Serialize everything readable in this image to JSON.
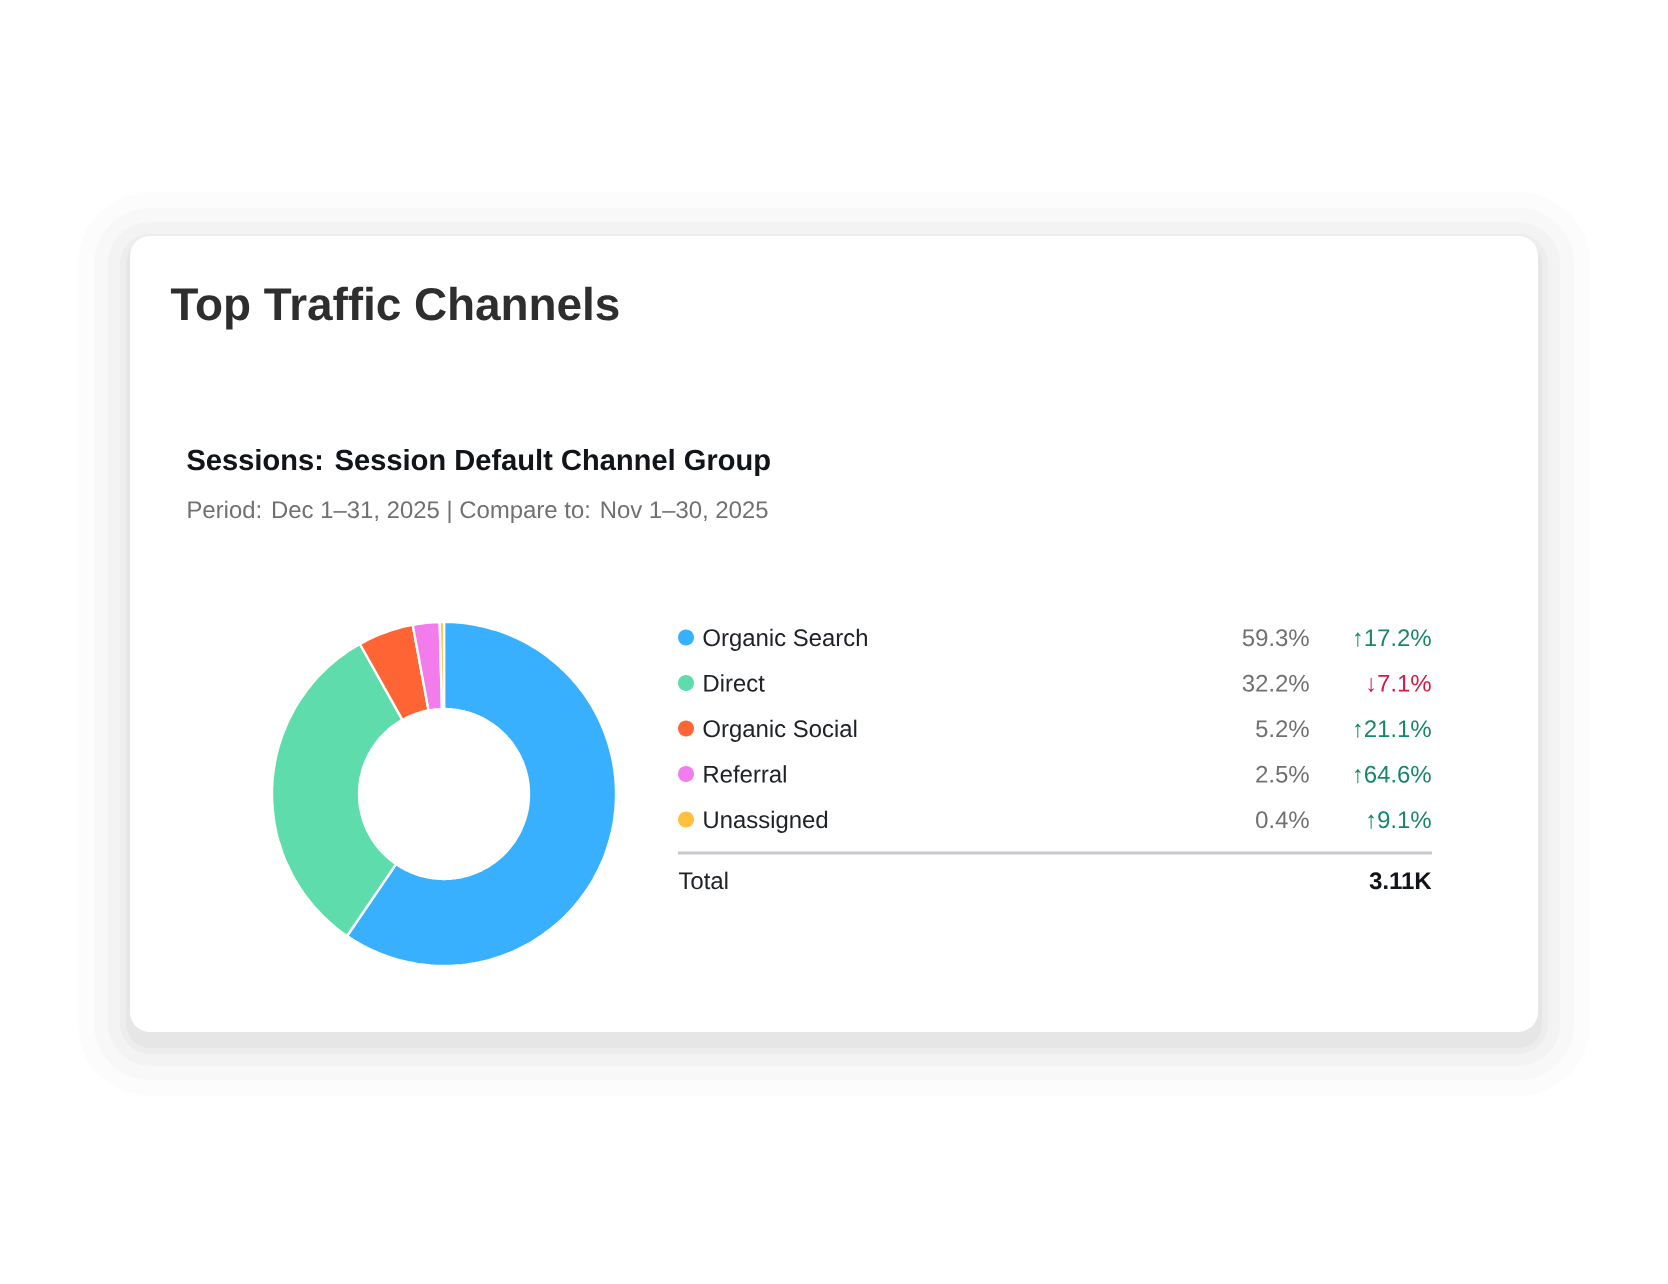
{
  "chart_data": {
    "type": "donut",
    "title": "Top Traffic Channels",
    "subtitle": "Sessions: Session Default Channel Group",
    "categories": [
      "Organic Search",
      "Direct",
      "Organic Social",
      "Referral",
      "Unassigned"
    ],
    "values": [
      59.3,
      32.2,
      5.2,
      2.5,
      0.4
    ],
    "colors": [
      "#38b0fe",
      "#5fdcac",
      "#ff6435",
      "#f37ced",
      "#ffbf3f"
    ],
    "value_labels": [
      "59.3%",
      "32.2%",
      "5.2%",
      "2.5%",
      "0.4%"
    ],
    "legend": "right",
    "annotations": [
      "Period: Dec 1–31, 2025 | Compare to: Nov 1–30, 2025",
      "↑17.2%",
      "↓7.1%",
      "↑21.1%",
      "↑64.6%",
      "↑9.1%",
      "Total",
      "3.11K"
    ]
  }
}
